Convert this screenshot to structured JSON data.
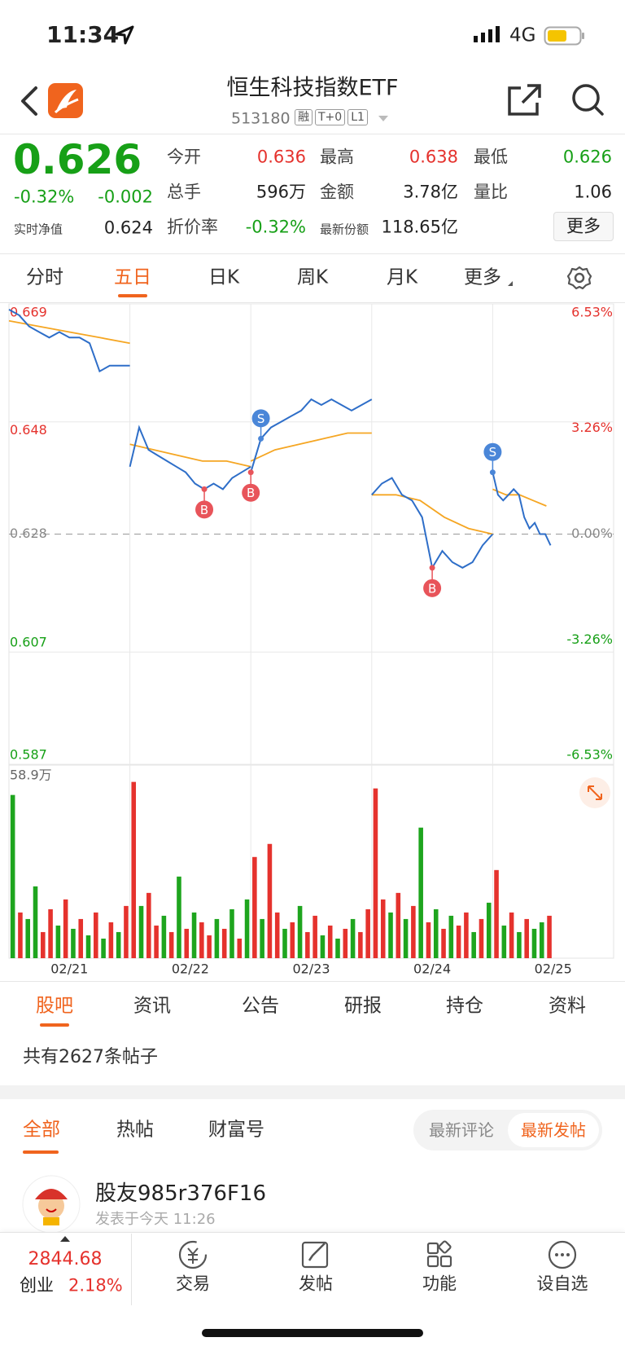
{
  "status_bar": {
    "time": "11:34",
    "network": "4G"
  },
  "header": {
    "title": "恒生科技指数ETF",
    "code": "513180",
    "badges": [
      "融",
      "T+0",
      "L1"
    ]
  },
  "quote": {
    "price": "0.626",
    "change_pct": "-0.32%",
    "change": "-0.002",
    "nav_label": "实时净值",
    "nav": "0.624",
    "stats": [
      {
        "label": "今开",
        "value": "0.636",
        "color": "#e5322d"
      },
      {
        "label": "最高",
        "value": "0.638",
        "color": "#e5322d"
      },
      {
        "label": "最低",
        "value": "0.626",
        "color": "#17a017"
      },
      {
        "label": "总手",
        "value": "596万",
        "color": "#222222"
      },
      {
        "label": "金额",
        "value": "3.78亿",
        "color": "#222222"
      },
      {
        "label": "量比",
        "value": "1.06",
        "color": "#222222"
      },
      {
        "label": "折价率",
        "value": "-0.32%",
        "color": "#17a017"
      },
      {
        "label": "最新份额",
        "value": "118.65亿",
        "color": "#222222"
      }
    ],
    "more": "更多"
  },
  "chart_tabs": [
    "分时",
    "五日",
    "日K",
    "周K",
    "月K",
    "更多"
  ],
  "active_chart_tab": 1,
  "chart_data": {
    "type": "intraday",
    "categories": [
      "02/21",
      "02/22",
      "02/23",
      "02/24",
      "02/25"
    ],
    "ylim": [
      0.587,
      0.669
    ],
    "yticks": [
      0.669,
      0.648,
      0.628,
      0.607,
      0.587
    ],
    "y2lim": [
      -6.53,
      6.53
    ],
    "y2ticks": [
      {
        "value": 6.53,
        "label": "6.53%"
      },
      {
        "value": 3.26,
        "label": "3.26%"
      },
      {
        "value": 0,
        "label": "0.00%"
      },
      {
        "value": -3.26,
        "label": "-3.26%"
      },
      {
        "value": -6.53,
        "label": "-6.53%"
      }
    ],
    "price_color": "#2e6ec8",
    "avg_color": "#f5a623",
    "volume_max": {
      "value": 58.9,
      "label": "58.9万"
    },
    "days": [
      {
        "price": [
          0.668,
          0.667,
          0.665,
          0.664,
          0.663,
          0.664,
          0.663,
          0.663,
          0.662,
          0.657,
          0.658,
          0.658,
          0.658
        ],
        "avg": [
          0.666,
          0.665,
          0.664,
          0.663,
          0.662
        ],
        "volume": [
          50,
          14,
          12,
          22,
          8,
          15,
          10,
          18,
          9,
          12,
          7,
          14,
          6,
          11,
          8,
          16
        ],
        "volume_colors": [
          "#1ea51e",
          "#e5322d",
          "#1ea51e",
          "#1ea51e",
          "#e5322d",
          "#e5322d",
          "#1ea51e",
          "#e5322d",
          "#1ea51e",
          "#e5322d",
          "#1ea51e",
          "#e5322d",
          "#1ea51e",
          "#e5322d",
          "#1ea51e",
          "#e5322d"
        ]
      },
      {
        "price": [
          0.64,
          0.647,
          0.643,
          0.642,
          0.641,
          0.64,
          0.639,
          0.637,
          0.636,
          0.637,
          0.636,
          0.638,
          0.639,
          0.64
        ],
        "avg": [
          0.644,
          0.643,
          0.642,
          0.641,
          0.641,
          0.64
        ],
        "volume": [
          54,
          16,
          20,
          10,
          13,
          8,
          25,
          9,
          14,
          11,
          7,
          12,
          9,
          15,
          6,
          18
        ],
        "volume_colors": [
          "#e5322d",
          "#1ea51e",
          "#e5322d",
          "#e5322d",
          "#1ea51e",
          "#e5322d",
          "#1ea51e",
          "#e5322d",
          "#1ea51e",
          "#e5322d",
          "#e5322d",
          "#1ea51e",
          "#e5322d",
          "#1ea51e",
          "#e5322d",
          "#1ea51e"
        ]
      },
      {
        "price": [
          0.639,
          0.645,
          0.647,
          0.648,
          0.649,
          0.65,
          0.652,
          0.651,
          0.652,
          0.651,
          0.65,
          0.651,
          0.652
        ],
        "avg": [
          0.641,
          0.643,
          0.644,
          0.645,
          0.646,
          0.646
        ],
        "volume": [
          31,
          12,
          35,
          14,
          9,
          11,
          16,
          8,
          13,
          7,
          10,
          6,
          9,
          12,
          8,
          15
        ],
        "volume_colors": [
          "#e5322d",
          "#1ea51e",
          "#e5322d",
          "#e5322d",
          "#1ea51e",
          "#e5322d",
          "#1ea51e",
          "#e5322d",
          "#e5322d",
          "#1ea51e",
          "#e5322d",
          "#1ea51e",
          "#e5322d",
          "#1ea51e",
          "#e5322d",
          "#e5322d"
        ]
      },
      {
        "price": [
          0.635,
          0.637,
          0.638,
          0.635,
          0.634,
          0.631,
          0.622,
          0.625,
          0.623,
          0.622,
          0.623,
          0.626,
          0.628
        ],
        "avg": [
          0.635,
          0.635,
          0.634,
          0.631,
          0.629,
          0.628
        ],
        "volume": [
          52,
          18,
          14,
          20,
          12,
          16,
          40,
          11,
          15,
          9,
          13,
          10,
          14,
          8,
          12,
          17
        ],
        "volume_colors": [
          "#e5322d",
          "#e5322d",
          "#1ea51e",
          "#e5322d",
          "#1ea51e",
          "#e5322d",
          "#1ea51e",
          "#e5322d",
          "#1ea51e",
          "#e5322d",
          "#1ea51e",
          "#e5322d",
          "#e5322d",
          "#1ea51e",
          "#e5322d",
          "#1ea51e"
        ]
      },
      {
        "price": [
          0.639,
          0.635,
          0.634,
          0.635,
          0.636,
          0.635,
          0.631,
          0.629,
          0.63,
          0.628,
          0.628,
          0.626,
          null,
          null,
          null,
          null,
          null,
          null,
          null,
          null,
          null,
          null,
          null,
          null
        ],
        "avg": [
          0.636,
          0.635,
          0.635,
          0.634,
          0.633,
          null,
          null,
          null,
          null,
          null
        ],
        "volume": [
          27,
          10,
          14,
          8,
          12,
          9,
          11,
          13,
          null,
          null,
          null,
          null,
          null,
          null,
          null,
          null
        ],
        "volume_colors": [
          "#e5322d",
          "#1ea51e",
          "#e5322d",
          "#1ea51e",
          "#e5322d",
          "#1ea51e",
          "#1ea51e",
          "#e5322d",
          null,
          null,
          null,
          null,
          null,
          null,
          null,
          null
        ]
      }
    ],
    "markers": [
      {
        "label": "B",
        "day": 1,
        "index": 8
      },
      {
        "label": "S",
        "day": 2,
        "index": 1
      },
      {
        "label": "B",
        "day": 2,
        "index": 0
      },
      {
        "label": "B",
        "day": 3,
        "index": 6
      },
      {
        "label": "S",
        "day": 4,
        "index": 0
      }
    ]
  },
  "section_tabs": [
    "股吧",
    "资讯",
    "公告",
    "研报",
    "持仓",
    "资料"
  ],
  "post_count": "共有2627条帖子",
  "filter_tabs": [
    "全部",
    "热帖",
    "财富号"
  ],
  "sort_options": [
    "最新评论",
    "最新发帖"
  ],
  "post": {
    "user": "股友985r376F16",
    "time": "发表于今天 11:26"
  },
  "bottom_bar": {
    "index_value": "2844.68",
    "index_name": "创业",
    "index_change": "2.18%",
    "items": [
      "交易",
      "发帖",
      "功能",
      "设自选"
    ]
  }
}
